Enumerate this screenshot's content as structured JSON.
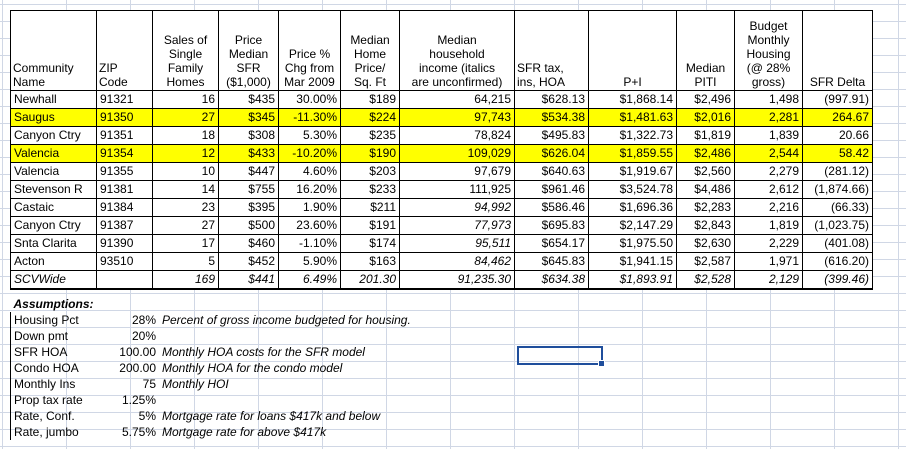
{
  "headers": {
    "community": [
      "Community",
      "Name"
    ],
    "zip": [
      "ZIP",
      "Code"
    ],
    "sales": [
      "Sales of",
      "Single",
      "Family",
      "Homes"
    ],
    "price": [
      "Price",
      "Median",
      "SFR",
      "($1,000)"
    ],
    "pct": [
      "Price %",
      "Chg from",
      "Mar 2009"
    ],
    "sqft": [
      "Median",
      "Home",
      "Price/",
      "Sq. Ft"
    ],
    "income": [
      "Median",
      "household",
      "income (italics",
      "are unconfirmed)"
    ],
    "tax": [
      "SFR tax,",
      "ins, HOA"
    ],
    "pi": [
      "P+I"
    ],
    "piti": [
      "Median",
      "PITI"
    ],
    "budget": [
      "Budget",
      "Monthly",
      "Housing",
      "(@ 28%",
      "gross)"
    ],
    "delta": [
      "SFR Delta"
    ]
  },
  "rows": [
    {
      "name": "Newhall",
      "zip": "91321",
      "sales": "16",
      "price": "$435",
      "pct": "30.00%",
      "sqft": "$189",
      "income": "64,215",
      "income_italic": false,
      "tax": "$628.13",
      "pi": "$1,868.14",
      "piti": "$2,496",
      "budget": "1,498",
      "delta": "(997.91)",
      "highlight": false
    },
    {
      "name": "Saugus",
      "zip": "91350",
      "sales": "27",
      "price": "$345",
      "pct": "-11.30%",
      "sqft": "$224",
      "income": "97,743",
      "income_italic": false,
      "tax": "$534.38",
      "pi": "$1,481.63",
      "piti": "$2,016",
      "budget": "2,281",
      "delta": "264.67",
      "highlight": true
    },
    {
      "name": "Canyon Ctry",
      "zip": "91351",
      "sales": "18",
      "price": "$308",
      "pct": "5.30%",
      "sqft": "$235",
      "income": "78,824",
      "income_italic": false,
      "tax": "$495.83",
      "pi": "$1,322.73",
      "piti": "$1,819",
      "budget": "1,839",
      "delta": "20.66",
      "highlight": false
    },
    {
      "name": "Valencia",
      "zip": "91354",
      "sales": "12",
      "price": "$433",
      "pct": "-10.20%",
      "sqft": "$190",
      "income": "109,029",
      "income_italic": false,
      "tax": "$626.04",
      "pi": "$1,859.55",
      "piti": "$2,486",
      "budget": "2,544",
      "delta": "58.42",
      "highlight": true
    },
    {
      "name": "Valencia",
      "zip": "91355",
      "sales": "10",
      "price": "$447",
      "pct": "4.60%",
      "sqft": "$203",
      "income": "97,679",
      "income_italic": false,
      "tax": "$640.63",
      "pi": "$1,919.67",
      "piti": "$2,560",
      "budget": "2,279",
      "delta": "(281.12)",
      "highlight": false
    },
    {
      "name": "Stevenson R",
      "zip": "91381",
      "sales": "14",
      "price": "$755",
      "pct": "16.20%",
      "sqft": "$233",
      "income": "111,925",
      "income_italic": false,
      "tax": "$961.46",
      "pi": "$3,524.78",
      "piti": "$4,486",
      "budget": "2,612",
      "delta": "(1,874.66)",
      "highlight": false
    },
    {
      "name": "Castaic",
      "zip": "91384",
      "sales": "23",
      "price": "$395",
      "pct": "1.90%",
      "sqft": "$211",
      "income": "94,992",
      "income_italic": true,
      "tax": "$586.46",
      "pi": "$1,696.36",
      "piti": "$2,283",
      "budget": "2,216",
      "delta": "(66.33)",
      "highlight": false
    },
    {
      "name": "Canyon Ctry",
      "zip": "91387",
      "sales": "27",
      "price": "$500",
      "pct": "23.60%",
      "sqft": "$191",
      "income": "77,973",
      "income_italic": true,
      "tax": "$695.83",
      "pi": "$2,147.29",
      "piti": "$2,843",
      "budget": "1,819",
      "delta": "(1,023.75)",
      "highlight": false
    },
    {
      "name": "Snta Clarita",
      "zip": "91390",
      "sales": "17",
      "price": "$460",
      "pct": "-1.10%",
      "sqft": "$174",
      "income": "95,511",
      "income_italic": true,
      "tax": "$654.17",
      "pi": "$1,975.50",
      "piti": "$2,630",
      "budget": "2,229",
      "delta": "(401.08)",
      "highlight": false
    },
    {
      "name": "Acton",
      "zip": "93510",
      "sales": "5",
      "price": "$452",
      "pct": "5.90%",
      "sqft": "$163",
      "income": "84,462",
      "income_italic": true,
      "tax": "$645.83",
      "pi": "$1,941.15",
      "piti": "$2,587",
      "budget": "1,971",
      "delta": "(616.20)",
      "highlight": false
    }
  ],
  "total": {
    "name": "SCVWide",
    "zip": "",
    "sales": "169",
    "price": "$441",
    "pct": "6.49%",
    "sqft": "201.30",
    "income": "91,235.30",
    "tax": "$634.38",
    "pi": "$1,893.91",
    "piti": "$2,528",
    "budget": "2,129",
    "delta": "(399.46)"
  },
  "assumptions": {
    "title": "Assumptions:",
    "items": [
      {
        "label": "Housing Pct",
        "value": "28%",
        "note": "Percent of gross income budgeted for housing."
      },
      {
        "label": "Down pmt",
        "value": "20%",
        "note": ""
      },
      {
        "label": "SFR HOA",
        "value": "100.00",
        "note": "Monthly HOA costs for the SFR model"
      },
      {
        "label": "Condo HOA",
        "value": "200.00",
        "note": "Monthly HOA for the condo model"
      },
      {
        "label": "Monthly Ins",
        "value": "75",
        "note": "Monthly HOI"
      },
      {
        "label": "Prop tax rate",
        "value": "1.25%",
        "note": ""
      },
      {
        "label": "Rate, Conf.",
        "value": "5%",
        "note": "Mortgage rate for loans $417k and below"
      },
      {
        "label": "Rate, jumbo",
        "value": "5.75%",
        "note": "Mortgage rate for above $417k"
      }
    ]
  },
  "colors": {
    "highlight": "#ffff00",
    "gridline": "#d0d7e5",
    "selection": "#1f4e9c"
  }
}
